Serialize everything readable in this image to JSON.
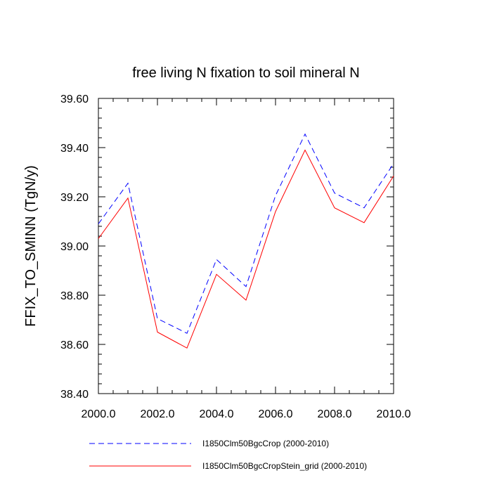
{
  "chart_data": {
    "type": "line",
    "title": "free living N fixation to soil mineral N",
    "xlabel": "",
    "ylabel": "FFIX_TO_SMINN  (TgN/y)",
    "xlim": [
      2000.0,
      2010.0
    ],
    "ylim": [
      38.4,
      39.6
    ],
    "x_ticks": [
      "2000.0",
      "2002.0",
      "2004.0",
      "2006.0",
      "2008.0",
      "2010.0"
    ],
    "y_ticks": [
      "38.40",
      "38.60",
      "38.80",
      "39.00",
      "39.20",
      "39.40",
      "39.60"
    ],
    "x": [
      2000,
      2001,
      2002,
      2003,
      2004,
      2005,
      2006,
      2007,
      2008,
      2009,
      2010
    ],
    "series": [
      {
        "name": "I1850Clm50BgcCrop (2000-2010)",
        "color": "#0000ff",
        "style": "dashed",
        "values": [
          39.09,
          39.255,
          38.705,
          38.645,
          38.945,
          38.835,
          39.205,
          39.455,
          39.215,
          39.155,
          39.335
        ]
      },
      {
        "name": "I1850Clm50BgcCropStein_grid (2000-2010)",
        "color": "#ff0000",
        "style": "solid",
        "values": [
          39.03,
          39.195,
          38.65,
          38.585,
          38.885,
          38.78,
          39.14,
          39.39,
          39.155,
          39.095,
          39.285
        ]
      }
    ],
    "grid": false,
    "legend_position": "bottom"
  }
}
